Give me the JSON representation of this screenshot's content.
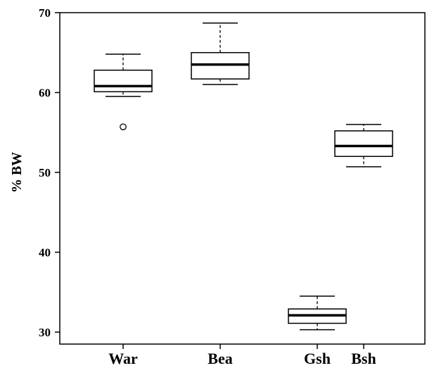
{
  "chart_data": {
    "type": "boxplot",
    "title": "",
    "xlabel": "",
    "ylabel": "% BW",
    "ylim": [
      28.5,
      70
    ],
    "yticks": [
      30,
      40,
      50,
      60,
      70
    ],
    "grid": false,
    "categories": [
      "War",
      "Bea",
      "Gsh",
      "Bsh"
    ],
    "boxes": [
      {
        "category": "War",
        "whisker_low": 59.5,
        "q1": 60.1,
        "median": 60.8,
        "q3": 62.8,
        "whisker_high": 64.8,
        "outliers": [
          55.7
        ]
      },
      {
        "category": "Bea",
        "whisker_low": 61.0,
        "q1": 61.7,
        "median": 63.5,
        "q3": 65.0,
        "whisker_high": 68.7,
        "outliers": []
      },
      {
        "category": "Gsh",
        "whisker_low": 30.3,
        "q1": 31.1,
        "median": 32.1,
        "q3": 32.9,
        "whisker_high": 34.5,
        "outliers": []
      },
      {
        "category": "Bsh",
        "whisker_low": 50.7,
        "q1": 52.0,
        "median": 53.3,
        "q3": 55.2,
        "whisker_high": 56.0,
        "outliers": []
      }
    ]
  }
}
